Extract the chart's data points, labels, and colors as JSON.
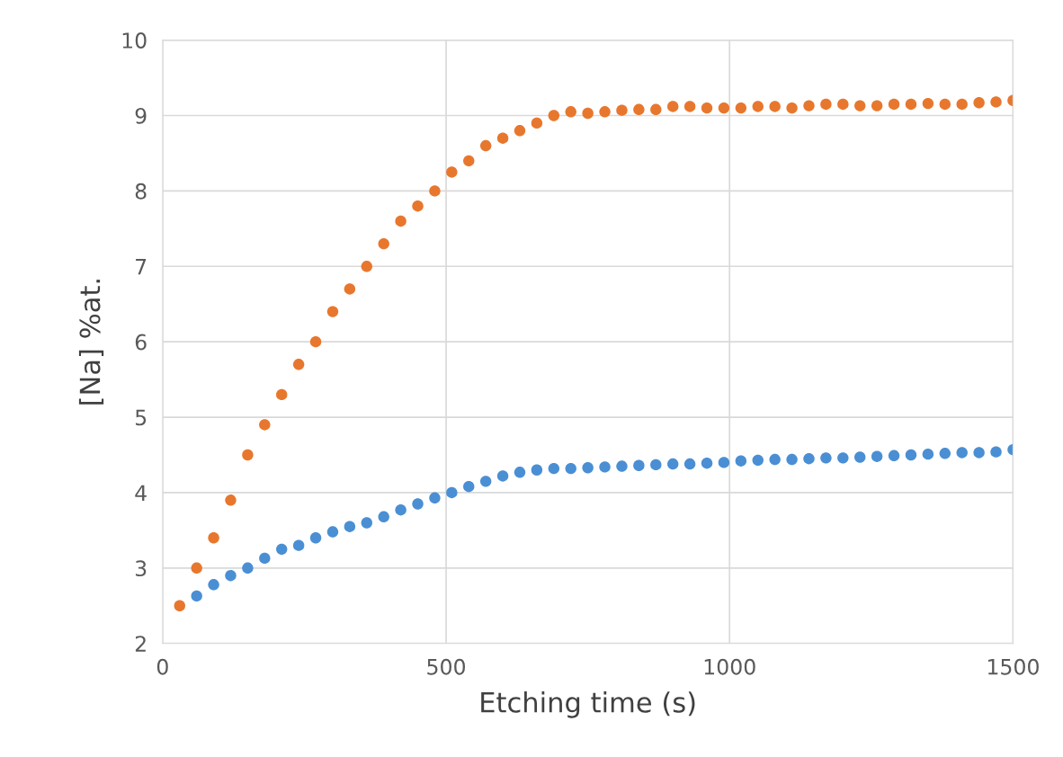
{
  "chart_data": {
    "type": "scatter",
    "xlabel": "Etching time (s)",
    "ylabel": "[Na] %at.",
    "x": [
      30,
      60,
      90,
      120,
      150,
      180,
      210,
      240,
      270,
      300,
      330,
      360,
      390,
      420,
      450,
      480,
      510,
      540,
      570,
      600,
      630,
      660,
      690,
      720,
      750,
      780,
      810,
      840,
      870,
      900,
      930,
      960,
      990,
      1020,
      1050,
      1080,
      1110,
      1140,
      1170,
      1200,
      1230,
      1260,
      1290,
      1320,
      1350,
      1380,
      1410,
      1440,
      1470,
      1500
    ],
    "series": [
      {
        "color": "#e8772e",
        "values": [
          2.5,
          3.0,
          3.4,
          3.9,
          4.5,
          4.9,
          5.3,
          5.7,
          6.0,
          6.4,
          6.7,
          7.0,
          7.3,
          7.6,
          7.8,
          8.0,
          8.25,
          8.4,
          8.6,
          8.7,
          8.8,
          8.9,
          9.0,
          9.05,
          9.03,
          9.05,
          9.07,
          9.08,
          9.08,
          9.12,
          9.12,
          9.1,
          9.1,
          9.1,
          9.12,
          9.12,
          9.1,
          9.13,
          9.15,
          9.15,
          9.13,
          9.13,
          9.15,
          9.15,
          9.16,
          9.15,
          9.15,
          9.17,
          9.18,
          9.2
        ]
      },
      {
        "color": "#4a8fd4",
        "values": [
          null,
          2.63,
          2.78,
          2.9,
          3.0,
          3.13,
          3.25,
          3.3,
          3.4,
          3.48,
          3.55,
          3.6,
          3.68,
          3.77,
          3.85,
          3.93,
          4.0,
          4.08,
          4.15,
          4.22,
          4.27,
          4.3,
          4.32,
          4.32,
          4.33,
          4.34,
          4.35,
          4.36,
          4.37,
          4.38,
          4.38,
          4.39,
          4.4,
          4.42,
          4.43,
          4.44,
          4.44,
          4.45,
          4.46,
          4.46,
          4.47,
          4.48,
          4.49,
          4.5,
          4.51,
          4.52,
          4.53,
          4.53,
          4.54,
          4.57
        ]
      }
    ],
    "xlim": [
      0,
      1500
    ],
    "xticks": [
      0,
      500,
      1000,
      1500
    ],
    "ylim": [
      2,
      10
    ],
    "yticks": [
      2,
      3,
      4,
      5,
      6,
      7,
      8,
      9,
      10
    ],
    "grid": true,
    "marker": "circle"
  }
}
